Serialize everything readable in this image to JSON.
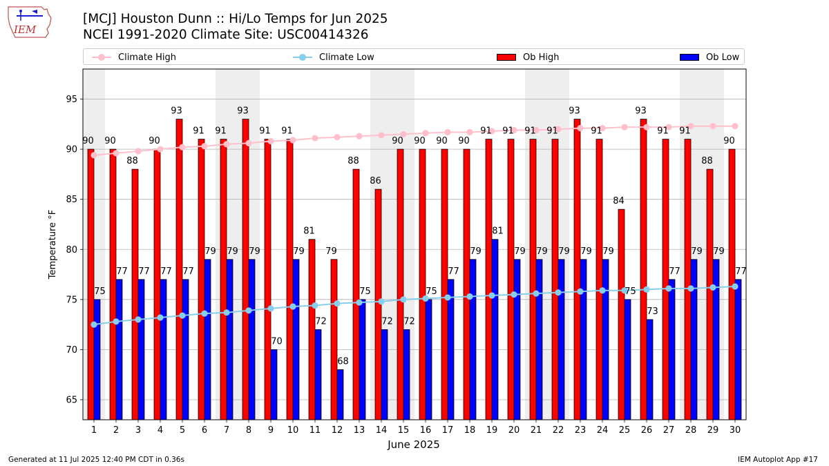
{
  "logo_text": "IEM",
  "title_line1": "[MCJ] Houston Dunn :: Hi/Lo Temps for Jun 2025",
  "title_line2": "NCEI 1991-2020 Climate Site: USC00414326",
  "footer_left": "Generated at 11 Jul 2025 12:40 PM CDT in 0.36s",
  "footer_right": "IEM Autoplot App #17",
  "legend": {
    "climate_high": "Climate High",
    "climate_low": "Climate Low",
    "ob_high": "Ob High",
    "ob_low": "Ob Low"
  },
  "colors": {
    "ob_high": "#ff0000",
    "ob_low": "#0000ff",
    "climate_high": "#ffc0cb",
    "climate_low": "#87ceeb",
    "weekend_shade": "#eeeeee"
  },
  "chart_data": {
    "type": "bar",
    "xlabel": "June 2025",
    "ylabel": "Temperature °F",
    "ylim": [
      63,
      98
    ],
    "yticks": [
      65,
      70,
      75,
      80,
      85,
      90,
      95
    ],
    "grid": "horizontal",
    "legend_position": "top",
    "categories": [
      "1",
      "2",
      "3",
      "4",
      "5",
      "6",
      "7",
      "8",
      "9",
      "10",
      "11",
      "12",
      "13",
      "14",
      "15",
      "16",
      "17",
      "18",
      "19",
      "20",
      "21",
      "22",
      "23",
      "24",
      "25",
      "26",
      "27",
      "28",
      "29",
      "30"
    ],
    "shaded_days": [
      1,
      7,
      8,
      14,
      15,
      21,
      22,
      28,
      29
    ],
    "series": [
      {
        "name": "Ob High",
        "kind": "bar",
        "values": [
          90,
          90,
          88,
          90,
          93,
          91,
          91,
          93,
          91,
          91,
          81,
          79,
          88,
          86,
          90,
          90,
          90,
          90,
          91,
          91,
          91,
          91,
          93,
          91,
          84,
          93,
          91,
          91,
          88,
          90
        ]
      },
      {
        "name": "Ob Low",
        "kind": "bar",
        "values": [
          75,
          77,
          77,
          77,
          77,
          79,
          79,
          79,
          70,
          79,
          72,
          68,
          75,
          72,
          72,
          75,
          77,
          79,
          81,
          79,
          79,
          79,
          79,
          79,
          75,
          73,
          77,
          79,
          79,
          77
        ]
      },
      {
        "name": "Climate High",
        "kind": "line",
        "values": [
          89.4,
          89.6,
          89.8,
          90.0,
          90.2,
          90.3,
          90.5,
          90.6,
          90.8,
          90.9,
          91.1,
          91.2,
          91.3,
          91.4,
          91.5,
          91.6,
          91.7,
          91.7,
          91.8,
          91.9,
          91.9,
          92.0,
          92.1,
          92.1,
          92.2,
          92.2,
          92.2,
          92.3,
          92.3,
          92.3
        ]
      },
      {
        "name": "Climate Low",
        "kind": "line",
        "values": [
          72.5,
          72.8,
          73.0,
          73.2,
          73.4,
          73.6,
          73.7,
          73.9,
          74.1,
          74.3,
          74.4,
          74.6,
          74.7,
          74.8,
          75.0,
          75.1,
          75.2,
          75.3,
          75.4,
          75.5,
          75.6,
          75.7,
          75.8,
          75.9,
          75.9,
          76.0,
          76.1,
          76.1,
          76.2,
          76.3
        ]
      }
    ]
  }
}
